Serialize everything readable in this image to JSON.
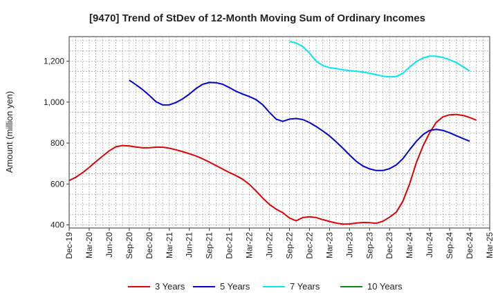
{
  "chart_data": {
    "type": "line",
    "title": "[9470]  Trend of StDev of 12-Month Moving Sum of Ordinary Incomes",
    "xlabel": "",
    "ylabel": "Amount (million yen)",
    "ylim": [
      385,
      1320
    ],
    "yticks": [
      400,
      600,
      800,
      1000,
      1200
    ],
    "ytick_labels": [
      "400",
      "600",
      "800",
      "1,000",
      "1,200"
    ],
    "x_start": "2019-12",
    "x_end": "2025-03",
    "xtick_labels": [
      "Dec-19",
      "Mar-20",
      "Jun-20",
      "Sep-20",
      "Dec-20",
      "Mar-21",
      "Jun-21",
      "Sep-21",
      "Dec-21",
      "Mar-22",
      "Jun-22",
      "Sep-22",
      "Dec-22",
      "Mar-23",
      "Jun-23",
      "Sep-23",
      "Dec-23",
      "Mar-24",
      "Jun-24",
      "Sep-24",
      "Dec-24",
      "Mar-25"
    ],
    "grid": true,
    "legend_position": "bottom",
    "series": [
      {
        "name": "3 Years",
        "color": "#dd0000",
        "start": "2019-12",
        "values": [
          617,
          633,
          655,
          681,
          709,
          736,
          762,
          782,
          788,
          786,
          781,
          777,
          777,
          780,
          780,
          775,
          767,
          758,
          748,
          737,
          723,
          707,
          690,
          673,
          656,
          641,
          623,
          598,
          566,
          531,
          500,
          477,
          460,
          434,
          420,
          436,
          440,
          436,
          426,
          417,
          409,
          404,
          405,
          409,
          412,
          411,
          408,
          418,
          438,
          462,
          516,
          600,
          703,
          785,
          850,
          901,
          928,
          938,
          940,
          935,
          925,
          912
        ]
      },
      {
        "name": "5 Years",
        "color": "#0000cc",
        "start": "2020-09",
        "values": [
          1107,
          1085,
          1061,
          1033,
          1002,
          986,
          987,
          998,
          1016,
          1039,
          1066,
          1087,
          1096,
          1095,
          1087,
          1071,
          1053,
          1039,
          1027,
          1012,
          987,
          950,
          917,
          906,
          917,
          920,
          915,
          900,
          881,
          859,
          835,
          806,
          775,
          742,
          711,
          688,
          674,
          666,
          666,
          675,
          693,
          724,
          767,
          808,
          841,
          862,
          867,
          862,
          850,
          836,
          822,
          809
        ]
      },
      {
        "name": "7 Years",
        "color": "#00e5ee",
        "start": "2022-09",
        "values": [
          1296,
          1289,
          1271,
          1240,
          1200,
          1179,
          1168,
          1164,
          1158,
          1154,
          1151,
          1147,
          1141,
          1134,
          1127,
          1123,
          1125,
          1141,
          1171,
          1198,
          1215,
          1225,
          1224,
          1218,
          1207,
          1193,
          1173,
          1152
        ]
      },
      {
        "name": "10 Years",
        "color": "#118811",
        "start": "2022-09",
        "values": []
      }
    ]
  }
}
